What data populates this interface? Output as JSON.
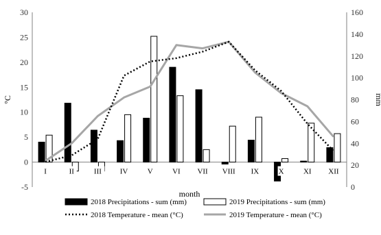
{
  "chart_data": {
    "type": "bar",
    "title": "",
    "xlabel": "month",
    "ylabel_left": "°C",
    "ylabel_right": "mm",
    "categories": [
      "I",
      "II",
      "III",
      "IV",
      "V",
      "VI",
      "VII",
      "VIII",
      "IX",
      "X",
      "XI",
      "XII"
    ],
    "left_axis": {
      "min": -5,
      "max": 30,
      "ticks": [
        -5,
        0,
        5,
        10,
        15,
        20,
        25,
        30
      ]
    },
    "right_axis": {
      "min": 0,
      "max": 160,
      "ticks": [
        0,
        20,
        40,
        60,
        80,
        100,
        120,
        140,
        160
      ]
    },
    "grid": false,
    "legend_position": "bottom",
    "series": [
      {
        "name": "2018 Precipitations - sum (mm)",
        "kind": "bar",
        "axis": "left",
        "color": "#000000",
        "values": [
          4.0,
          11.8,
          6.4,
          4.3,
          8.8,
          19.0,
          14.5,
          -0.4,
          4.4,
          -3.8,
          0.2,
          2.9
        ]
      },
      {
        "name": "2019 Precipitations - sum (mm)",
        "kind": "bar",
        "axis": "left",
        "color": "#ffffff",
        "values": [
          5.4,
          -1.8,
          -1.8,
          9.5,
          25.2,
          13.3,
          2.5,
          7.2,
          9.0,
          0.7,
          7.8,
          5.7
        ]
      },
      {
        "name": "2018 Temperature - mean (°C)",
        "kind": "line",
        "style": "dotted",
        "axis": "right",
        "color": "#000000",
        "values": [
          23,
          29,
          44,
          102,
          115,
          118,
          124,
          133,
          107,
          88,
          58,
          33
        ]
      },
      {
        "name": "2019 Temperature - mean (°C)",
        "kind": "line",
        "style": "solid",
        "axis": "right",
        "color": "#a6a6a6",
        "values": [
          24,
          40,
          65,
          82,
          92,
          130,
          127,
          133,
          105,
          86,
          74,
          46
        ]
      }
    ]
  }
}
